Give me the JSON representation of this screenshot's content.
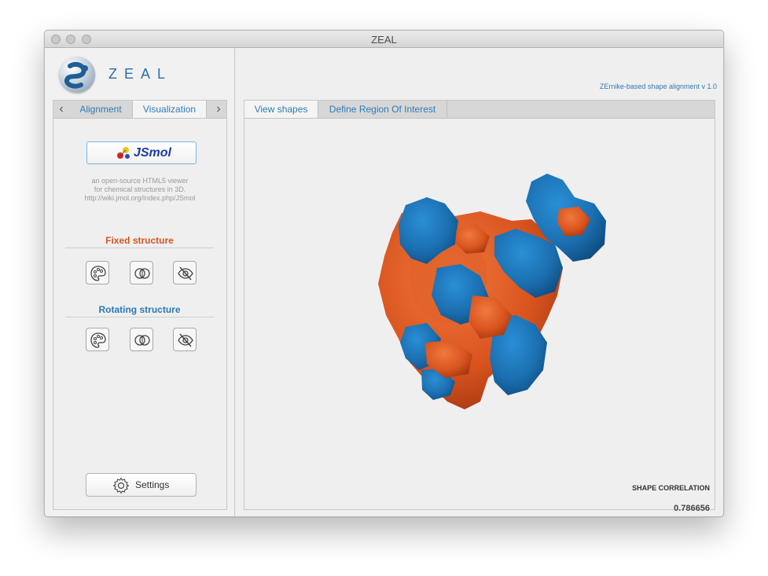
{
  "window": {
    "title": "ZEAL"
  },
  "logo": {
    "text": "ZEAL"
  },
  "left_tabs": {
    "items": [
      "Alignment",
      "Visualization"
    ],
    "active": "Visualization",
    "prev_arrow": "‹",
    "next_arrow": "›"
  },
  "jsmol": {
    "button_label": "JSmol",
    "description": [
      "an open-source HTML5 viewer",
      "for chemical structures in 3D.",
      "http://wiki.jmol.org/index.php/JSmol"
    ]
  },
  "fixed_structure": {
    "title": "Fixed structure",
    "color": "#d9531e"
  },
  "rotating_structure": {
    "title": "Rotating structure",
    "color": "#2c78b6"
  },
  "settings": {
    "label": "Settings"
  },
  "version_text": "ZErnike-based shape alignment v 1.0",
  "main_tabs": {
    "items": [
      "View shapes",
      "Define Region Of Interest"
    ],
    "active": "View shapes"
  },
  "shape_correlation": {
    "label": "SHAPE CORRELATION",
    "value": "0.786656"
  },
  "colors": {
    "accent": "#2f7bb5",
    "fixed": "#d9531e",
    "rotating": "#1f77bb"
  }
}
